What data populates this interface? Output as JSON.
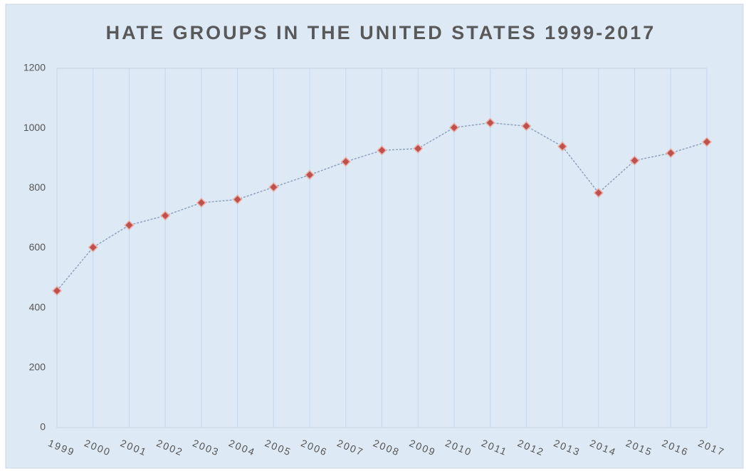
{
  "chart_data": {
    "type": "line",
    "title": "HATE GROUPS IN THE UNITED STATES 1999-2017",
    "categories": [
      "1999",
      "2000",
      "2001",
      "2002",
      "2003",
      "2004",
      "2005",
      "2006",
      "2007",
      "2008",
      "2009",
      "2010",
      "2011",
      "2012",
      "2013",
      "2014",
      "2015",
      "2016",
      "2017"
    ],
    "series": [
      {
        "name": "Hate groups",
        "color": "#8fa3bd",
        "marker_color": "#c0504d",
        "values": [
          457,
          602,
          676,
          708,
          751,
          762,
          803,
          844,
          888,
          926,
          932,
          1002,
          1018,
          1007,
          939,
          784,
          892,
          917,
          954
        ]
      }
    ],
    "ylim": [
      0,
      1200
    ],
    "yticks": [
      0,
      200,
      400,
      600,
      800,
      1000,
      1200
    ],
    "grid": "vertical",
    "legend": false
  }
}
